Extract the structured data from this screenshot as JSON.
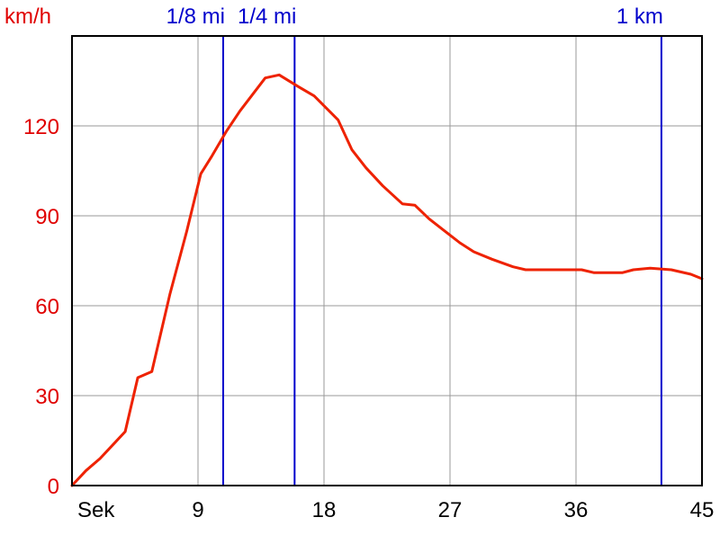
{
  "chart_data": {
    "type": "line",
    "ylabel": "km/h",
    "xlabel": "Sek",
    "xlim": [
      0,
      45
    ],
    "ylim": [
      0,
      150
    ],
    "x_ticks": [
      {
        "value": 9,
        "label": "9"
      },
      {
        "value": 18,
        "label": "18"
      },
      {
        "value": 27,
        "label": "27"
      },
      {
        "value": 36,
        "label": "36"
      },
      {
        "value": 45,
        "label": "45"
      }
    ],
    "y_ticks": [
      {
        "value": 0,
        "label": "0"
      },
      {
        "value": 30,
        "label": "30"
      },
      {
        "value": 60,
        "label": "60"
      },
      {
        "value": 90,
        "label": "90"
      },
      {
        "value": 120,
        "label": "120"
      }
    ],
    "grid": true,
    "markers": [
      {
        "x": 10.8,
        "label": "1/8 mi"
      },
      {
        "x": 15.9,
        "label": "1/4 mi"
      },
      {
        "x": 42.1,
        "label": "1 km"
      }
    ],
    "series": [
      {
        "color": "#ee2200",
        "points": [
          [
            0,
            0
          ],
          [
            1,
            5
          ],
          [
            2,
            9
          ],
          [
            3,
            14
          ],
          [
            3.8,
            18
          ],
          [
            4.7,
            36
          ],
          [
            5.7,
            38
          ],
          [
            7,
            64
          ],
          [
            8.2,
            85
          ],
          [
            9.2,
            104
          ],
          [
            10,
            110
          ],
          [
            11,
            118
          ],
          [
            12,
            125
          ],
          [
            13.8,
            136
          ],
          [
            14.8,
            137
          ],
          [
            16.2,
            133
          ],
          [
            17.3,
            130
          ],
          [
            19,
            122
          ],
          [
            20,
            112
          ],
          [
            21,
            106
          ],
          [
            22.2,
            100
          ],
          [
            23.6,
            94
          ],
          [
            24.5,
            93.5
          ],
          [
            25.5,
            89
          ],
          [
            26.6,
            85
          ],
          [
            27.7,
            81
          ],
          [
            28.7,
            78
          ],
          [
            30,
            75.5
          ],
          [
            31.5,
            73
          ],
          [
            32.4,
            72
          ],
          [
            35,
            72
          ],
          [
            36.4,
            72
          ],
          [
            37.3,
            71
          ],
          [
            39.3,
            71
          ],
          [
            40.1,
            72
          ],
          [
            41.3,
            72.5
          ],
          [
            42.8,
            72
          ],
          [
            44.2,
            70.5
          ],
          [
            45,
            69
          ]
        ]
      }
    ]
  },
  "colors": {
    "axis_label": "#e00000",
    "tick_label_y": "#e00000",
    "tick_label_x": "#000000",
    "marker": "#0000cc",
    "marker_label": "#0000cc",
    "grid": "#9a9a9a",
    "frame": "#000000"
  }
}
